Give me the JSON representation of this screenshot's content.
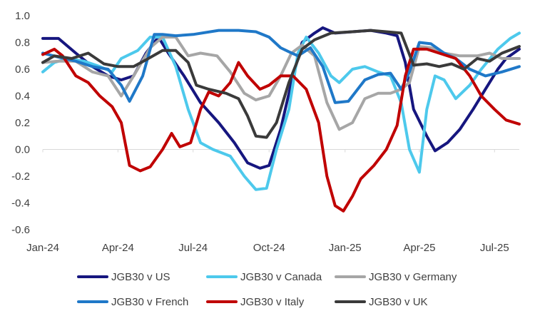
{
  "chart_data": {
    "type": "line",
    "title": "",
    "xlabel": "",
    "ylabel": "",
    "ylim": [
      -0.6,
      1.0
    ],
    "yticks": [
      1.0,
      0.8,
      0.6,
      0.4,
      0.2,
      0.0,
      -0.2,
      -0.4,
      -0.6
    ],
    "ytick_labels": [
      "1.0",
      "0.8",
      "0.6",
      "0.4",
      "0.2",
      "0.0",
      "-0.2",
      "-0.4",
      "-0.6"
    ],
    "xlim": [
      "2024-01-01",
      "2025-07-31"
    ],
    "xticks": [
      "2024-01-01",
      "2024-04-01",
      "2024-07-01",
      "2024-10-01",
      "2025-01-01",
      "2025-04-01",
      "2025-07-01"
    ],
    "xtick_labels": [
      "Jan-24",
      "Apr-24",
      "Jul-24",
      "Oct-24",
      "Jan-25",
      "Apr-25",
      "Jul-25"
    ],
    "grid": false,
    "legend_position": "bottom",
    "series": [
      {
        "name": "JGB30 v US",
        "color": "#16167F",
        "points": [
          [
            "2024-01-01",
            0.83
          ],
          [
            "2024-01-20",
            0.83
          ],
          [
            "2024-02-10",
            0.72
          ],
          [
            "2024-03-01",
            0.62
          ],
          [
            "2024-03-20",
            0.55
          ],
          [
            "2024-04-05",
            0.52
          ],
          [
            "2024-04-20",
            0.55
          ],
          [
            "2024-05-05",
            0.72
          ],
          [
            "2024-05-20",
            0.84
          ],
          [
            "2024-06-01",
            0.72
          ],
          [
            "2024-06-20",
            0.55
          ],
          [
            "2024-07-10",
            0.35
          ],
          [
            "2024-08-01",
            0.2
          ],
          [
            "2024-08-20",
            0.05
          ],
          [
            "2024-09-05",
            -0.1
          ],
          [
            "2024-09-20",
            -0.14
          ],
          [
            "2024-10-01",
            -0.12
          ],
          [
            "2024-10-15",
            0.15
          ],
          [
            "2024-10-28",
            0.5
          ],
          [
            "2024-11-10",
            0.8
          ],
          [
            "2024-11-25",
            0.87
          ],
          [
            "2024-12-05",
            0.91
          ],
          [
            "2024-12-20",
            0.87
          ],
          [
            "2025-01-10",
            0.88
          ],
          [
            "2025-02-01",
            0.89
          ],
          [
            "2025-02-20",
            0.87
          ],
          [
            "2025-03-05",
            0.85
          ],
          [
            "2025-03-15",
            0.65
          ],
          [
            "2025-03-25",
            0.3
          ],
          [
            "2025-04-10",
            0.1
          ],
          [
            "2025-04-20",
            -0.01
          ],
          [
            "2025-05-05",
            0.05
          ],
          [
            "2025-05-20",
            0.15
          ],
          [
            "2025-06-05",
            0.3
          ],
          [
            "2025-06-20",
            0.45
          ],
          [
            "2025-07-05",
            0.6
          ],
          [
            "2025-07-15",
            0.68
          ],
          [
            "2025-07-31",
            0.75
          ]
        ]
      },
      {
        "name": "JGB30 v Canada",
        "color": "#4DC9EC",
        "points": [
          [
            "2024-01-01",
            0.58
          ],
          [
            "2024-01-15",
            0.65
          ],
          [
            "2024-02-01",
            0.68
          ],
          [
            "2024-02-20",
            0.66
          ],
          [
            "2024-03-10",
            0.62
          ],
          [
            "2024-03-25",
            0.58
          ],
          [
            "2024-04-05",
            0.68
          ],
          [
            "2024-04-25",
            0.74
          ],
          [
            "2024-05-10",
            0.84
          ],
          [
            "2024-05-25",
            0.84
          ],
          [
            "2024-06-10",
            0.62
          ],
          [
            "2024-06-25",
            0.3
          ],
          [
            "2024-07-10",
            0.05
          ],
          [
            "2024-07-25",
            0.0
          ],
          [
            "2024-08-15",
            -0.05
          ],
          [
            "2024-09-01",
            -0.2
          ],
          [
            "2024-09-15",
            -0.3
          ],
          [
            "2024-09-28",
            -0.29
          ],
          [
            "2024-10-10",
            0.0
          ],
          [
            "2024-10-25",
            0.3
          ],
          [
            "2024-11-05",
            0.72
          ],
          [
            "2024-11-15",
            0.84
          ],
          [
            "2024-11-30",
            0.72
          ],
          [
            "2024-12-15",
            0.55
          ],
          [
            "2024-12-25",
            0.5
          ],
          [
            "2025-01-10",
            0.6
          ],
          [
            "2025-01-25",
            0.62
          ],
          [
            "2025-02-10",
            0.58
          ],
          [
            "2025-02-25",
            0.55
          ],
          [
            "2025-03-10",
            0.35
          ],
          [
            "2025-03-20",
            0.0
          ],
          [
            "2025-04-01",
            -0.17
          ],
          [
            "2025-04-10",
            0.3
          ],
          [
            "2025-04-20",
            0.55
          ],
          [
            "2025-05-01",
            0.52
          ],
          [
            "2025-05-15",
            0.38
          ],
          [
            "2025-06-01",
            0.48
          ],
          [
            "2025-06-15",
            0.6
          ],
          [
            "2025-07-05",
            0.75
          ],
          [
            "2025-07-20",
            0.83
          ],
          [
            "2025-07-31",
            0.87
          ]
        ]
      },
      {
        "name": "JGB30 v Germany",
        "color": "#A6A6A6",
        "points": [
          [
            "2024-01-01",
            0.65
          ],
          [
            "2024-01-20",
            0.66
          ],
          [
            "2024-02-10",
            0.66
          ],
          [
            "2024-03-01",
            0.58
          ],
          [
            "2024-03-20",
            0.55
          ],
          [
            "2024-04-05",
            0.4
          ],
          [
            "2024-04-20",
            0.55
          ],
          [
            "2024-05-10",
            0.76
          ],
          [
            "2024-05-25",
            0.84
          ],
          [
            "2024-06-10",
            0.84
          ],
          [
            "2024-06-25",
            0.7
          ],
          [
            "2024-07-10",
            0.72
          ],
          [
            "2024-07-30",
            0.7
          ],
          [
            "2024-08-15",
            0.58
          ],
          [
            "2024-09-01",
            0.42
          ],
          [
            "2024-09-15",
            0.37
          ],
          [
            "2024-10-01",
            0.4
          ],
          [
            "2024-10-15",
            0.55
          ],
          [
            "2024-10-28",
            0.72
          ],
          [
            "2024-11-10",
            0.78
          ],
          [
            "2024-11-25",
            0.7
          ],
          [
            "2024-12-10",
            0.35
          ],
          [
            "2024-12-25",
            0.15
          ],
          [
            "2025-01-10",
            0.2
          ],
          [
            "2025-01-25",
            0.38
          ],
          [
            "2025-02-10",
            0.42
          ],
          [
            "2025-02-25",
            0.42
          ],
          [
            "2025-03-10",
            0.45
          ],
          [
            "2025-03-20",
            0.5
          ],
          [
            "2025-04-01",
            0.77
          ],
          [
            "2025-04-15",
            0.76
          ],
          [
            "2025-05-01",
            0.72
          ],
          [
            "2025-05-20",
            0.7
          ],
          [
            "2025-06-10",
            0.7
          ],
          [
            "2025-06-25",
            0.72
          ],
          [
            "2025-07-10",
            0.68
          ],
          [
            "2025-07-31",
            0.68
          ]
        ]
      },
      {
        "name": "JGB30 v French",
        "color": "#1F78C8",
        "points": [
          [
            "2024-01-01",
            0.72
          ],
          [
            "2024-01-20",
            0.69
          ],
          [
            "2024-02-10",
            0.66
          ],
          [
            "2024-03-01",
            0.62
          ],
          [
            "2024-03-20",
            0.6
          ],
          [
            "2024-04-05",
            0.48
          ],
          [
            "2024-04-15",
            0.36
          ],
          [
            "2024-05-01",
            0.55
          ],
          [
            "2024-05-15",
            0.86
          ],
          [
            "2024-05-25",
            0.86
          ],
          [
            "2024-06-10",
            0.85
          ],
          [
            "2024-07-01",
            0.86
          ],
          [
            "2024-08-01",
            0.89
          ],
          [
            "2024-08-25",
            0.89
          ],
          [
            "2024-09-15",
            0.88
          ],
          [
            "2024-10-01",
            0.84
          ],
          [
            "2024-10-15",
            0.76
          ],
          [
            "2024-10-25",
            0.73
          ],
          [
            "2024-11-05",
            0.7
          ],
          [
            "2024-11-20",
            0.76
          ],
          [
            "2024-12-05",
            0.62
          ],
          [
            "2024-12-20",
            0.35
          ],
          [
            "2025-01-05",
            0.36
          ],
          [
            "2025-01-25",
            0.52
          ],
          [
            "2025-02-10",
            0.56
          ],
          [
            "2025-02-25",
            0.57
          ],
          [
            "2025-03-10",
            0.45
          ],
          [
            "2025-03-20",
            0.58
          ],
          [
            "2025-04-01",
            0.8
          ],
          [
            "2025-04-15",
            0.79
          ],
          [
            "2025-05-01",
            0.72
          ],
          [
            "2025-05-15",
            0.68
          ],
          [
            "2025-06-01",
            0.6
          ],
          [
            "2025-06-20",
            0.55
          ],
          [
            "2025-07-10",
            0.58
          ],
          [
            "2025-07-31",
            0.62
          ]
        ]
      },
      {
        "name": "JGB30 v Italy",
        "color": "#C00000",
        "points": [
          [
            "2024-01-01",
            0.71
          ],
          [
            "2024-01-15",
            0.75
          ],
          [
            "2024-01-25",
            0.7
          ],
          [
            "2024-02-10",
            0.55
          ],
          [
            "2024-02-25",
            0.5
          ],
          [
            "2024-03-10",
            0.4
          ],
          [
            "2024-03-25",
            0.32
          ],
          [
            "2024-04-05",
            0.2
          ],
          [
            "2024-04-15",
            -0.12
          ],
          [
            "2024-04-28",
            -0.16
          ],
          [
            "2024-05-10",
            -0.13
          ],
          [
            "2024-05-25",
            0.0
          ],
          [
            "2024-06-05",
            0.12
          ],
          [
            "2024-06-15",
            0.02
          ],
          [
            "2024-06-28",
            0.05
          ],
          [
            "2024-07-10",
            0.3
          ],
          [
            "2024-07-20",
            0.43
          ],
          [
            "2024-08-01",
            0.4
          ],
          [
            "2024-08-15",
            0.5
          ],
          [
            "2024-08-25",
            0.65
          ],
          [
            "2024-09-05",
            0.55
          ],
          [
            "2024-09-20",
            0.45
          ],
          [
            "2024-10-01",
            0.48
          ],
          [
            "2024-10-15",
            0.55
          ],
          [
            "2024-10-30",
            0.55
          ],
          [
            "2024-11-15",
            0.45
          ],
          [
            "2024-11-30",
            0.2
          ],
          [
            "2024-12-10",
            -0.2
          ],
          [
            "2024-12-20",
            -0.42
          ],
          [
            "2024-12-30",
            -0.46
          ],
          [
            "2025-01-10",
            -0.35
          ],
          [
            "2025-01-20",
            -0.22
          ],
          [
            "2025-02-05",
            -0.12
          ],
          [
            "2025-02-20",
            0.0
          ],
          [
            "2025-03-05",
            0.18
          ],
          [
            "2025-03-15",
            0.55
          ],
          [
            "2025-03-25",
            0.75
          ],
          [
            "2025-04-10",
            0.75
          ],
          [
            "2025-04-25",
            0.72
          ],
          [
            "2025-05-15",
            0.68
          ],
          [
            "2025-06-01",
            0.55
          ],
          [
            "2025-06-15",
            0.4
          ],
          [
            "2025-07-01",
            0.3
          ],
          [
            "2025-07-15",
            0.22
          ],
          [
            "2025-07-31",
            0.19
          ]
        ]
      },
      {
        "name": "JGB30 v UK",
        "color": "#3A3A3A",
        "points": [
          [
            "2024-01-01",
            0.65
          ],
          [
            "2024-01-15",
            0.7
          ],
          [
            "2024-02-05",
            0.68
          ],
          [
            "2024-02-25",
            0.72
          ],
          [
            "2024-03-15",
            0.64
          ],
          [
            "2024-04-01",
            0.62
          ],
          [
            "2024-04-20",
            0.62
          ],
          [
            "2024-05-05",
            0.67
          ],
          [
            "2024-05-25",
            0.74
          ],
          [
            "2024-06-10",
            0.74
          ],
          [
            "2024-06-25",
            0.65
          ],
          [
            "2024-07-05",
            0.48
          ],
          [
            "2024-07-20",
            0.45
          ],
          [
            "2024-08-10",
            0.42
          ],
          [
            "2024-08-25",
            0.38
          ],
          [
            "2024-09-05",
            0.25
          ],
          [
            "2024-09-15",
            0.1
          ],
          [
            "2024-09-28",
            0.09
          ],
          [
            "2024-10-10",
            0.2
          ],
          [
            "2024-10-25",
            0.5
          ],
          [
            "2024-11-10",
            0.75
          ],
          [
            "2024-11-25",
            0.82
          ],
          [
            "2024-12-15",
            0.87
          ],
          [
            "2025-01-10",
            0.88
          ],
          [
            "2025-02-01",
            0.89
          ],
          [
            "2025-02-20",
            0.88
          ],
          [
            "2025-03-10",
            0.87
          ],
          [
            "2025-03-25",
            0.63
          ],
          [
            "2025-04-10",
            0.64
          ],
          [
            "2025-04-25",
            0.62
          ],
          [
            "2025-05-10",
            0.64
          ],
          [
            "2025-05-25",
            0.6
          ],
          [
            "2025-06-10",
            0.68
          ],
          [
            "2025-06-25",
            0.66
          ],
          [
            "2025-07-10",
            0.72
          ],
          [
            "2025-07-31",
            0.77
          ]
        ]
      }
    ]
  }
}
